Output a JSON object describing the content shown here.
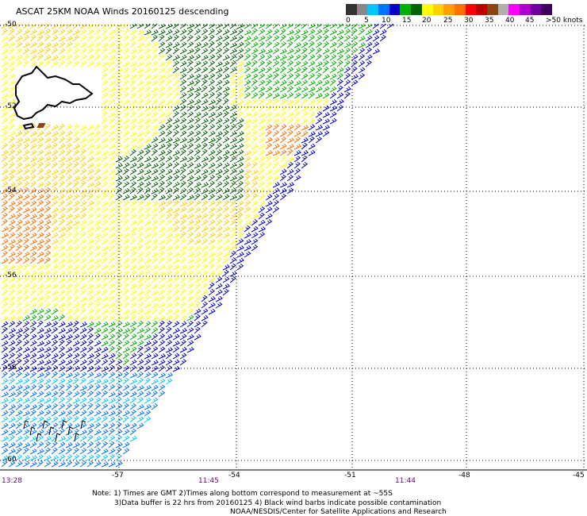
{
  "title": "ASCAT 25KM NOAA Winds 20160125 descending",
  "scale": {
    "colors": [
      "#333333",
      "#888888",
      "#00c8ff",
      "#0070ff",
      "#0000c8",
      "#00b000",
      "#006400",
      "#ffff00",
      "#ffd000",
      "#ffa000",
      "#ff7000",
      "#ff0000",
      "#c00000",
      "#8b4513",
      "#b0b0b0",
      "#ff00ff",
      "#b000d0",
      "#7000a0",
      "#400060"
    ],
    "labels": [
      "0",
      "5",
      "10",
      "15",
      "20",
      "25",
      "30",
      "35",
      "40",
      "45",
      ">50 knots"
    ]
  },
  "lat_labels": [
    "-50",
    "-52",
    "-54",
    "-56",
    "-58",
    "-60"
  ],
  "lon_labels": [
    "-57",
    "-54",
    "-51",
    "-48",
    "-45"
  ],
  "times": [
    "13:28",
    "11:45",
    "11:44"
  ],
  "notes": [
    "Note: 1) Times are GMT 2)Times along bottom correspond to measurement at ~55S",
    "3)Data buffer is 22 hrs from 20160125 4) Black wind barbs indicate possible contamination",
    "NOAA/NESDIS/Center for Satellite Applications and Research"
  ]
}
